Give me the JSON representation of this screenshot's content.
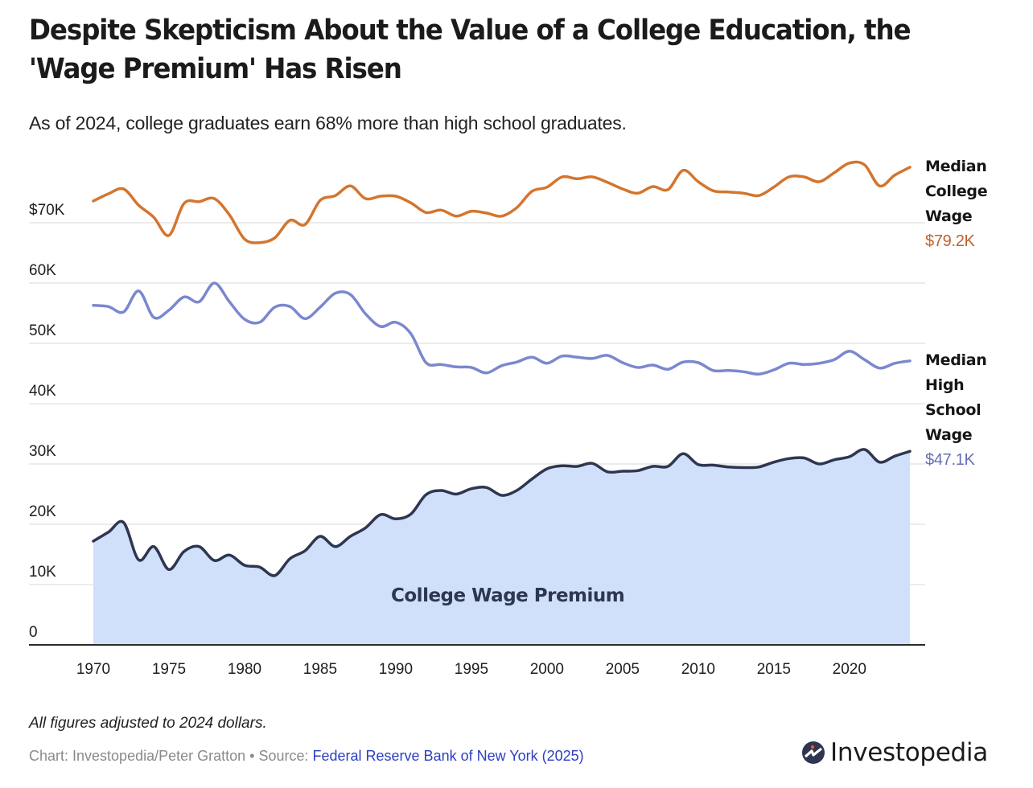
{
  "title": "Despite Skepticism About the Value of a College Education, the 'Wage Premium' Has Risen",
  "subtitle": "As of 2024, college graduates earn 68% more than high school graduates.",
  "note": "All figures adjusted to 2024 dollars.",
  "credit": {
    "prefix": "Chart: Investopedia/Peter Gratton • Source: ",
    "source_link": "Federal Reserve Bank of New York (2025)"
  },
  "logo": {
    "name": "Investopedia",
    "icon": "investopedia-logo-icon"
  },
  "chart_data": {
    "type": "line",
    "title": "Despite Skepticism About the Value of a College Education, the 'Wage Premium' Has Risen",
    "xlabel": "",
    "ylabel": "",
    "ylim": [
      0,
      80000
    ],
    "xlim": [
      1970,
      2024
    ],
    "grid": true,
    "y_ticks": [
      {
        "value": 0,
        "label": "0"
      },
      {
        "value": 10000,
        "label": "10K"
      },
      {
        "value": 20000,
        "label": "20K"
      },
      {
        "value": 30000,
        "label": "30K"
      },
      {
        "value": 40000,
        "label": "40K"
      },
      {
        "value": 50000,
        "label": "50K"
      },
      {
        "value": 60000,
        "label": "60K"
      },
      {
        "value": 70000,
        "label": "$70K"
      }
    ],
    "x_ticks": [
      {
        "value": 1970,
        "label": "1970"
      },
      {
        "value": 1975,
        "label": "1975"
      },
      {
        "value": 1980,
        "label": "1980"
      },
      {
        "value": 1985,
        "label": "1985"
      },
      {
        "value": 1990,
        "label": "1990"
      },
      {
        "value": 1995,
        "label": "1995"
      },
      {
        "value": 2000,
        "label": "2000"
      },
      {
        "value": 2005,
        "label": "2005"
      },
      {
        "value": 2010,
        "label": "2010"
      },
      {
        "value": 2015,
        "label": "2015"
      },
      {
        "value": 2020,
        "label": "2020"
      }
    ],
    "x": [
      1970,
      1971,
      1972,
      1973,
      1974,
      1975,
      1976,
      1977,
      1978,
      1979,
      1980,
      1981,
      1982,
      1983,
      1984,
      1985,
      1986,
      1987,
      1988,
      1989,
      1990,
      1991,
      1992,
      1993,
      1994,
      1995,
      1996,
      1997,
      1998,
      1999,
      2000,
      2001,
      2002,
      2003,
      2004,
      2005,
      2006,
      2007,
      2008,
      2009,
      2010,
      2011,
      2012,
      2013,
      2014,
      2015,
      2016,
      2017,
      2018,
      2019,
      2020,
      2021,
      2022,
      2023,
      2024
    ],
    "series": [
      {
        "name": "Median College Wage",
        "label_lines": [
          "Median",
          "College",
          "Wage"
        ],
        "end_label": "$79.2K",
        "color": "#d4752e",
        "label_color": "#c0612a",
        "values": [
          73600,
          74800,
          75600,
          72900,
          70900,
          67900,
          73200,
          73500,
          74000,
          71300,
          67300,
          66700,
          67500,
          70400,
          69700,
          73700,
          74500,
          76100,
          74000,
          74400,
          74400,
          73300,
          71700,
          72100,
          71100,
          71900,
          71600,
          71100,
          72500,
          75200,
          75900,
          77600,
          77300,
          77600,
          76700,
          75600,
          74900,
          76000,
          75500,
          78700,
          76800,
          75300,
          75100,
          74900,
          74500,
          75900,
          77600,
          77600,
          76800,
          78300,
          79900,
          79600,
          76100,
          77900,
          79200
        ]
      },
      {
        "name": "Median High School Wage",
        "label_lines": [
          "Median",
          "High",
          "School",
          "Wage"
        ],
        "end_label": "$47.1K",
        "color": "#7b87cf",
        "label_color": "#6670b5",
        "values": [
          56300,
          56100,
          55200,
          58700,
          54300,
          55500,
          57700,
          56900,
          60000,
          56900,
          54000,
          53500,
          56000,
          56100,
          54100,
          56000,
          58300,
          58100,
          54900,
          52800,
          53500,
          51600,
          46800,
          46500,
          46100,
          46000,
          45100,
          46300,
          46900,
          47700,
          46700,
          47900,
          47700,
          47500,
          48000,
          46800,
          46000,
          46400,
          45700,
          46900,
          46800,
          45500,
          45500,
          45300,
          44900,
          45600,
          46700,
          46500,
          46700,
          47300,
          48700,
          47300,
          45900,
          46700,
          47100
        ]
      },
      {
        "name": "College Wage Premium",
        "area_label": "College Wage Premium",
        "color": "#2e3650",
        "fill": "#d0e0fb",
        "values": [
          17200,
          18700,
          20300,
          14100,
          16300,
          12500,
          15500,
          16300,
          14000,
          14900,
          13200,
          12900,
          11500,
          14300,
          15600,
          18000,
          16300,
          18000,
          19400,
          21600,
          20900,
          21700,
          24900,
          25600,
          25000,
          25900,
          26100,
          24800,
          25600,
          27500,
          29200,
          29700,
          29600,
          30100,
          28700,
          28800,
          28900,
          29600,
          29600,
          31700,
          29900,
          29800,
          29500,
          29400,
          29500,
          30300,
          30900,
          31000,
          30000,
          30700,
          31200,
          32400,
          30300,
          31300,
          32100
        ]
      }
    ]
  }
}
